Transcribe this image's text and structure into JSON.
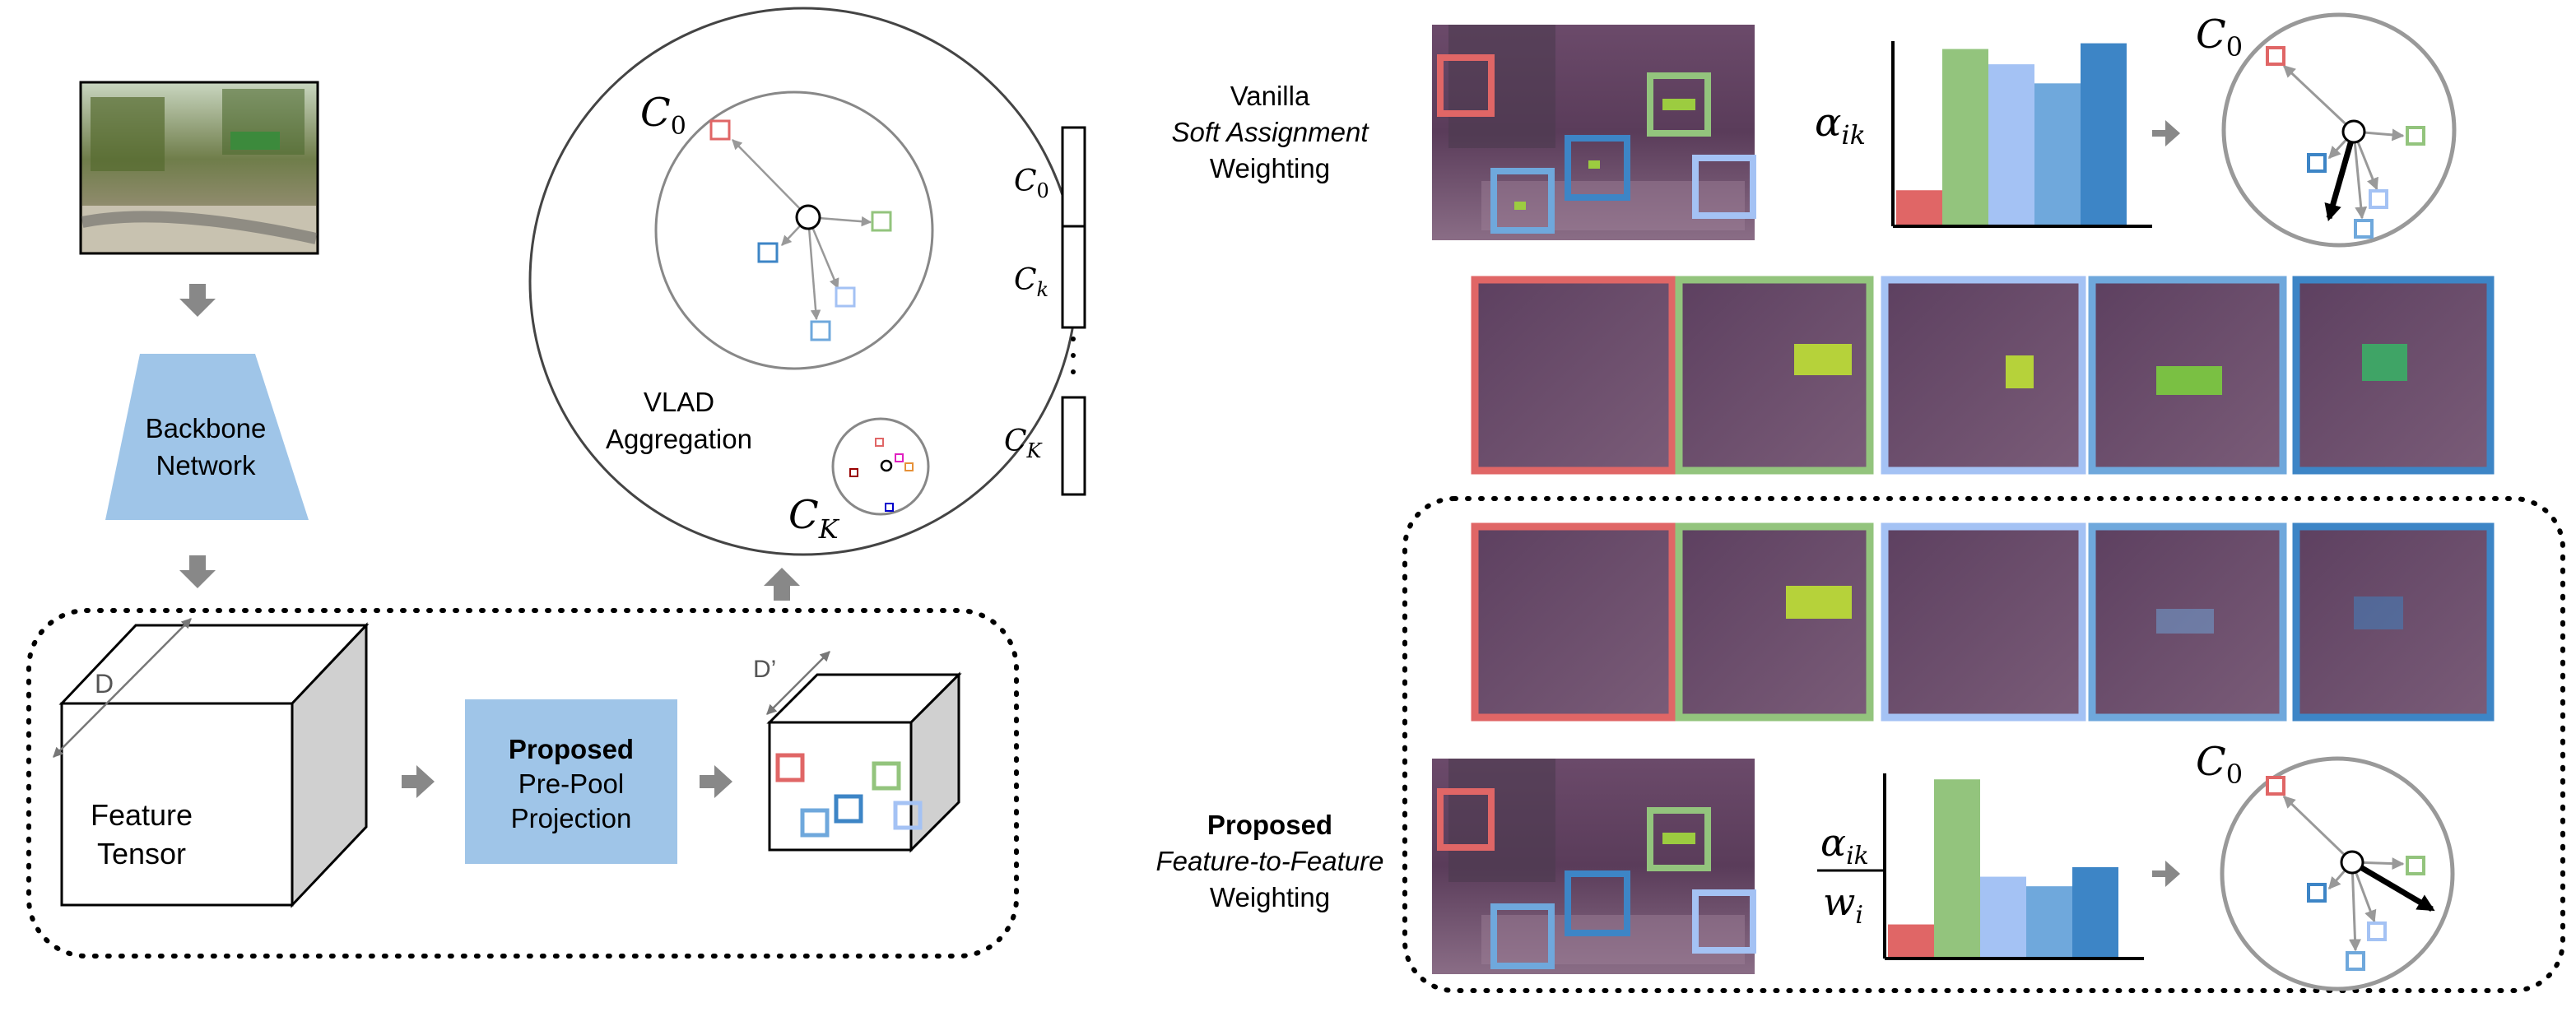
{
  "left": {
    "backbone": {
      "line1": "Backbone",
      "line2": "Network"
    },
    "feature_tensor": {
      "line1": "Feature",
      "line2": "Tensor",
      "dim_label": "D"
    },
    "projection": {
      "line1": "Proposed",
      "line2": "Pre-Pool",
      "line3": "Projection"
    },
    "projected_tensor": {
      "dim_label": "D’"
    }
  },
  "vlad": {
    "label_line1": "VLAD",
    "label_line2": "Aggregation",
    "c0": "C",
    "c0_sub": "0",
    "ck": "C",
    "ck_sub": "K",
    "vector_labels": [
      {
        "base": "C",
        "sub": "0"
      },
      {
        "base": "C",
        "sub": "k"
      },
      {
        "base": "C",
        "sub": "K"
      }
    ]
  },
  "vanilla": {
    "line1": "Vanilla",
    "line2": "Soft Assignment",
    "line3": "Weighting",
    "weight_label": {
      "base": "α",
      "sub": "ik"
    },
    "circle_label": {
      "base": "C",
      "sub": "0"
    },
    "bar_values": [
      0.18,
      0.92,
      0.84,
      0.74,
      0.95
    ]
  },
  "proposed": {
    "line1": "Proposed",
    "line2": "Feature-to-Feature",
    "line3": "Weighting",
    "weight_num": {
      "base": "α",
      "sub": "ik"
    },
    "weight_den": {
      "base": "w",
      "sub": "i"
    },
    "circle_label": {
      "base": "C",
      "sub": "0"
    },
    "bar_values": [
      0.17,
      0.93,
      0.42,
      0.37,
      0.47
    ]
  },
  "colors": {
    "red": "#e06666",
    "green": "#93c47d",
    "light_blue": "#a4c2f4",
    "mid_blue": "#6fa8dc",
    "dark_blue": "#3d85c6",
    "arrow_gray": "#999999",
    "box_blue": "#9fc5e8"
  }
}
